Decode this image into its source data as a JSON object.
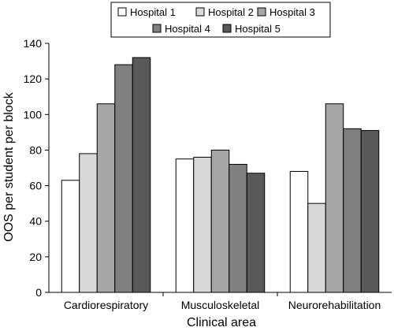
{
  "chart_data": {
    "type": "bar",
    "title": "",
    "xlabel": "Clinical area",
    "ylabel": "OOS per student per block",
    "categories": [
      "Cardiorespiratory",
      "Musculoskeletal",
      "Neurorehabilitation"
    ],
    "ylim": [
      0,
      140
    ],
    "yticks": [
      0,
      20,
      40,
      60,
      80,
      100,
      120,
      140
    ],
    "grid": false,
    "legend_position": "top",
    "series": [
      {
        "name": "Hospital 1",
        "color": "#ffffff",
        "values": [
          63,
          75,
          68
        ]
      },
      {
        "name": "Hospital 2",
        "color": "#d9d9d9",
        "values": [
          78,
          76,
          50
        ]
      },
      {
        "name": "Hospital 3",
        "color": "#a6a6a6",
        "values": [
          106,
          80,
          106
        ]
      },
      {
        "name": "Hospital 4",
        "color": "#808080",
        "values": [
          128,
          72,
          92
        ]
      },
      {
        "name": "Hospital 5",
        "color": "#595959",
        "values": [
          132,
          67,
          91
        ]
      }
    ]
  }
}
